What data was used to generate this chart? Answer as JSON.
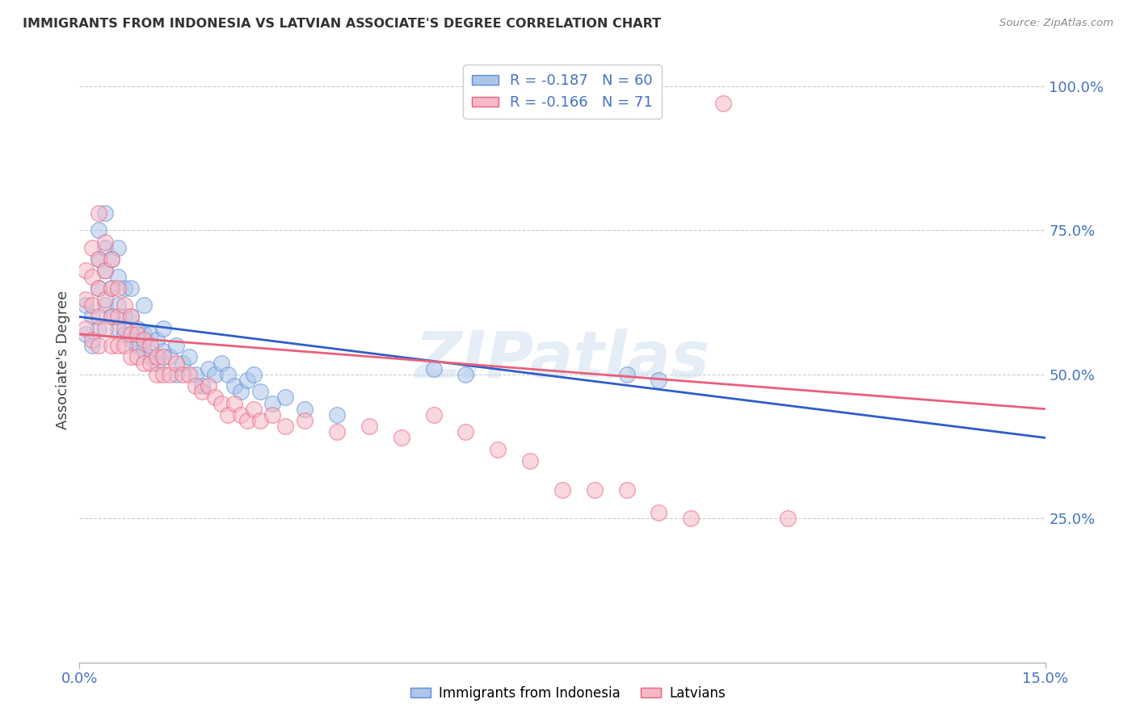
{
  "title": "IMMIGRANTS FROM INDONESIA VS LATVIAN ASSOCIATE'S DEGREE CORRELATION CHART",
  "source": "Source: ZipAtlas.com",
  "ylabel": "Associate's Degree",
  "xlim": [
    0.0,
    0.15
  ],
  "ylim": [
    0.0,
    1.05
  ],
  "yticks": [
    0.0,
    0.25,
    0.5,
    0.75,
    1.0
  ],
  "ytick_labels": [
    "",
    "25.0%",
    "50.0%",
    "75.0%",
    "100.0%"
  ],
  "xtick_vals": [
    0.0,
    0.15
  ],
  "xtick_labels": [
    "0.0%",
    "15.0%"
  ],
  "legend_r1": "R = -0.187",
  "legend_n1": "N = 60",
  "legend_r2": "R = -0.166",
  "legend_n2": "N = 71",
  "blue_fill": "#adc6e8",
  "pink_fill": "#f5b8c8",
  "blue_edge": "#5b8dd9",
  "pink_edge": "#e8607a",
  "blue_line_color": "#2f5fc4",
  "pink_line_color": "#e8607a",
  "axis_label_color": "#4472c4",
  "title_color": "#333333",
  "watermark": "ZIPatlas",
  "blue_regr": [
    0.0,
    0.6,
    0.15,
    0.39
  ],
  "pink_regr": [
    0.0,
    0.57,
    0.15,
    0.44
  ],
  "blue_scatter": [
    [
      0.001,
      0.57
    ],
    [
      0.001,
      0.62
    ],
    [
      0.002,
      0.55
    ],
    [
      0.002,
      0.6
    ],
    [
      0.003,
      0.58
    ],
    [
      0.003,
      0.65
    ],
    [
      0.003,
      0.7
    ],
    [
      0.003,
      0.75
    ],
    [
      0.004,
      0.62
    ],
    [
      0.004,
      0.68
    ],
    [
      0.004,
      0.72
    ],
    [
      0.004,
      0.78
    ],
    [
      0.005,
      0.6
    ],
    [
      0.005,
      0.65
    ],
    [
      0.005,
      0.7
    ],
    [
      0.006,
      0.58
    ],
    [
      0.006,
      0.62
    ],
    [
      0.006,
      0.67
    ],
    [
      0.006,
      0.72
    ],
    [
      0.007,
      0.57
    ],
    [
      0.007,
      0.6
    ],
    [
      0.007,
      0.65
    ],
    [
      0.008,
      0.56
    ],
    [
      0.008,
      0.6
    ],
    [
      0.008,
      0.65
    ],
    [
      0.009,
      0.55
    ],
    [
      0.009,
      0.58
    ],
    [
      0.01,
      0.54
    ],
    [
      0.01,
      0.57
    ],
    [
      0.01,
      0.62
    ],
    [
      0.011,
      0.53
    ],
    [
      0.011,
      0.57
    ],
    [
      0.012,
      0.52
    ],
    [
      0.012,
      0.56
    ],
    [
      0.013,
      0.54
    ],
    [
      0.013,
      0.58
    ],
    [
      0.014,
      0.53
    ],
    [
      0.015,
      0.55
    ],
    [
      0.015,
      0.5
    ],
    [
      0.016,
      0.52
    ],
    [
      0.017,
      0.53
    ],
    [
      0.018,
      0.5
    ],
    [
      0.019,
      0.48
    ],
    [
      0.02,
      0.51
    ],
    [
      0.021,
      0.5
    ],
    [
      0.022,
      0.52
    ],
    [
      0.023,
      0.5
    ],
    [
      0.024,
      0.48
    ],
    [
      0.025,
      0.47
    ],
    [
      0.026,
      0.49
    ],
    [
      0.027,
      0.5
    ],
    [
      0.028,
      0.47
    ],
    [
      0.03,
      0.45
    ],
    [
      0.032,
      0.46
    ],
    [
      0.035,
      0.44
    ],
    [
      0.04,
      0.43
    ],
    [
      0.055,
      0.51
    ],
    [
      0.06,
      0.5
    ],
    [
      0.085,
      0.5
    ],
    [
      0.09,
      0.49
    ]
  ],
  "pink_scatter": [
    [
      0.001,
      0.58
    ],
    [
      0.001,
      0.63
    ],
    [
      0.001,
      0.68
    ],
    [
      0.002,
      0.56
    ],
    [
      0.002,
      0.62
    ],
    [
      0.002,
      0.67
    ],
    [
      0.002,
      0.72
    ],
    [
      0.003,
      0.55
    ],
    [
      0.003,
      0.6
    ],
    [
      0.003,
      0.65
    ],
    [
      0.003,
      0.7
    ],
    [
      0.003,
      0.78
    ],
    [
      0.004,
      0.58
    ],
    [
      0.004,
      0.63
    ],
    [
      0.004,
      0.68
    ],
    [
      0.004,
      0.73
    ],
    [
      0.005,
      0.55
    ],
    [
      0.005,
      0.6
    ],
    [
      0.005,
      0.65
    ],
    [
      0.005,
      0.7
    ],
    [
      0.006,
      0.55
    ],
    [
      0.006,
      0.6
    ],
    [
      0.006,
      0.65
    ],
    [
      0.007,
      0.55
    ],
    [
      0.007,
      0.58
    ],
    [
      0.007,
      0.62
    ],
    [
      0.008,
      0.53
    ],
    [
      0.008,
      0.57
    ],
    [
      0.008,
      0.6
    ],
    [
      0.009,
      0.53
    ],
    [
      0.009,
      0.57
    ],
    [
      0.01,
      0.52
    ],
    [
      0.01,
      0.56
    ],
    [
      0.011,
      0.52
    ],
    [
      0.011,
      0.55
    ],
    [
      0.012,
      0.5
    ],
    [
      0.012,
      0.53
    ],
    [
      0.013,
      0.5
    ],
    [
      0.013,
      0.53
    ],
    [
      0.014,
      0.5
    ],
    [
      0.015,
      0.52
    ],
    [
      0.016,
      0.5
    ],
    [
      0.017,
      0.5
    ],
    [
      0.018,
      0.48
    ],
    [
      0.019,
      0.47
    ],
    [
      0.02,
      0.48
    ],
    [
      0.021,
      0.46
    ],
    [
      0.022,
      0.45
    ],
    [
      0.023,
      0.43
    ],
    [
      0.024,
      0.45
    ],
    [
      0.025,
      0.43
    ],
    [
      0.026,
      0.42
    ],
    [
      0.027,
      0.44
    ],
    [
      0.028,
      0.42
    ],
    [
      0.03,
      0.43
    ],
    [
      0.032,
      0.41
    ],
    [
      0.035,
      0.42
    ],
    [
      0.04,
      0.4
    ],
    [
      0.045,
      0.41
    ],
    [
      0.05,
      0.39
    ],
    [
      0.055,
      0.43
    ],
    [
      0.06,
      0.4
    ],
    [
      0.065,
      0.37
    ],
    [
      0.07,
      0.35
    ],
    [
      0.075,
      0.3
    ],
    [
      0.08,
      0.3
    ],
    [
      0.085,
      0.3
    ],
    [
      0.09,
      0.26
    ],
    [
      0.095,
      0.25
    ],
    [
      0.1,
      0.97
    ],
    [
      0.11,
      0.25
    ]
  ]
}
